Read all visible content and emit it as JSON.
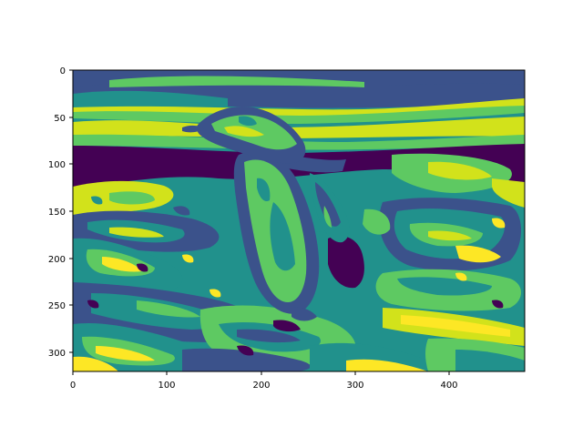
{
  "figure": {
    "colormap": "viridis",
    "colors": {
      "dark_purple": "#440154",
      "blue": "#3b528b",
      "teal": "#21918c",
      "green": "#5ec962",
      "yellow": "#d2e21b",
      "bright_yellow": "#fde725"
    },
    "image_content": "posterized penguin photo rendered with a discrete viridis colormap",
    "x_ticks": [
      "0",
      "100",
      "200",
      "300",
      "400"
    ],
    "y_ticks": [
      "0",
      "50",
      "100",
      "150",
      "200",
      "250",
      "300"
    ],
    "x_range": [
      0,
      480
    ],
    "y_range": [
      0,
      320
    ]
  }
}
